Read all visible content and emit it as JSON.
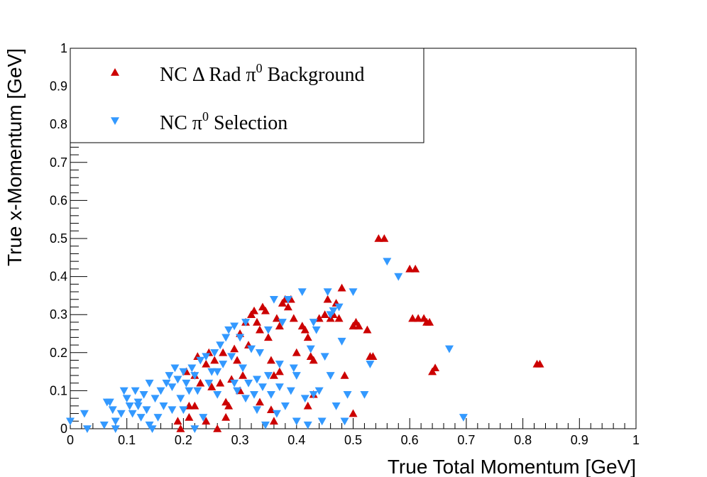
{
  "chart_data": {
    "type": "scatter",
    "xlabel": "True Total Momentum [GeV]",
    "ylabel": "True x-Momentum [GeV]",
    "xlim": [
      0,
      1
    ],
    "ylim": [
      0,
      1
    ],
    "x_ticks": [
      "0",
      "0.1",
      "0.2",
      "0.3",
      "0.4",
      "0.5",
      "0.6",
      "0.7",
      "0.8",
      "0.9",
      "1"
    ],
    "y_ticks": [
      "0",
      "0.1",
      "0.2",
      "0.3",
      "0.4",
      "0.5",
      "0.6",
      "0.7",
      "0.8",
      "0.9",
      "1"
    ],
    "grid": false,
    "legend_position": "top-left",
    "legend": [
      {
        "name": "NC Δ Rad π⁰ Background",
        "prefix": "NC Δ Rad π",
        "sup": "0",
        "suffix": " Background",
        "marker": "triangle-up",
        "color": "#cc0000"
      },
      {
        "name": "NC π⁰ Selection",
        "prefix": "NC π",
        "sup": "0",
        "suffix": " Selection",
        "marker": "triangle-down",
        "color": "#3399ff"
      }
    ],
    "series": [
      {
        "name": "NC Δ Rad π⁰ Background",
        "marker": "triangle-up",
        "color": "#cc0000",
        "points": [
          [
            0.19,
            0.02
          ],
          [
            0.195,
            0.0
          ],
          [
            0.21,
            0.06
          ],
          [
            0.21,
            0.03
          ],
          [
            0.205,
            0.15
          ],
          [
            0.22,
            0.14
          ],
          [
            0.225,
            0.19
          ],
          [
            0.23,
            0.12
          ],
          [
            0.24,
            0.17
          ],
          [
            0.245,
            0.2
          ],
          [
            0.25,
            0.11
          ],
          [
            0.255,
            0.18
          ],
          [
            0.26,
            0.0
          ],
          [
            0.265,
            0.12
          ],
          [
            0.27,
            0.2
          ],
          [
            0.275,
            0.07
          ],
          [
            0.28,
            0.06
          ],
          [
            0.285,
            0.13
          ],
          [
            0.29,
            0.21
          ],
          [
            0.295,
            0.18
          ],
          [
            0.3,
            0.25
          ],
          [
            0.305,
            0.14
          ],
          [
            0.31,
            0.28
          ],
          [
            0.315,
            0.22
          ],
          [
            0.32,
            0.3
          ],
          [
            0.325,
            0.31
          ],
          [
            0.33,
            0.28
          ],
          [
            0.335,
            0.26
          ],
          [
            0.34,
            0.32
          ],
          [
            0.345,
            0.31
          ],
          [
            0.35,
            0.24
          ],
          [
            0.355,
            0.18
          ],
          [
            0.36,
            0.14
          ],
          [
            0.365,
            0.29
          ],
          [
            0.37,
            0.27
          ],
          [
            0.375,
            0.33
          ],
          [
            0.38,
            0.34
          ],
          [
            0.385,
            0.32
          ],
          [
            0.39,
            0.34
          ],
          [
            0.395,
            0.29
          ],
          [
            0.4,
            0.2
          ],
          [
            0.41,
            0.27
          ],
          [
            0.415,
            0.26
          ],
          [
            0.42,
            0.24
          ],
          [
            0.425,
            0.19
          ],
          [
            0.43,
            0.18
          ],
          [
            0.44,
            0.29
          ],
          [
            0.45,
            0.3
          ],
          [
            0.455,
            0.34
          ],
          [
            0.46,
            0.29
          ],
          [
            0.465,
            0.3
          ],
          [
            0.47,
            0.33
          ],
          [
            0.475,
            0.29
          ],
          [
            0.48,
            0.37
          ],
          [
            0.485,
            0.14
          ],
          [
            0.5,
            0.27
          ],
          [
            0.505,
            0.28
          ],
          [
            0.51,
            0.27
          ],
          [
            0.525,
            0.26
          ],
          [
            0.53,
            0.19
          ],
          [
            0.535,
            0.19
          ],
          [
            0.545,
            0.5
          ],
          [
            0.555,
            0.5
          ],
          [
            0.5,
            0.04
          ],
          [
            0.6,
            0.42
          ],
          [
            0.605,
            0.29
          ],
          [
            0.61,
            0.42
          ],
          [
            0.615,
            0.29
          ],
          [
            0.625,
            0.29
          ],
          [
            0.63,
            0.28
          ],
          [
            0.635,
            0.28
          ],
          [
            0.64,
            0.15
          ],
          [
            0.645,
            0.16
          ],
          [
            0.825,
            0.17
          ],
          [
            0.83,
            0.17
          ],
          [
            0.22,
            0.06
          ],
          [
            0.24,
            0.02
          ],
          [
            0.275,
            0.03
          ],
          [
            0.3,
            0.1
          ],
          [
            0.335,
            0.07
          ],
          [
            0.355,
            0.05
          ],
          [
            0.36,
            0.02
          ],
          [
            0.37,
            0.15
          ],
          [
            0.42,
            0.06
          ],
          [
            0.43,
            0.09
          ]
        ]
      },
      {
        "name": "NC π⁰ Selection",
        "marker": "triangle-down",
        "color": "#3399ff",
        "points": [
          [
            0.0,
            0.02
          ],
          [
            0.025,
            0.04
          ],
          [
            0.03,
            0.0
          ],
          [
            0.06,
            0.01
          ],
          [
            0.065,
            0.07
          ],
          [
            0.07,
            0.07
          ],
          [
            0.075,
            0.05
          ],
          [
            0.08,
            0.02
          ],
          [
            0.09,
            0.04
          ],
          [
            0.095,
            0.1
          ],
          [
            0.1,
            0.08
          ],
          [
            0.105,
            0.06
          ],
          [
            0.11,
            0.04
          ],
          [
            0.115,
            0.1
          ],
          [
            0.12,
            0.07
          ],
          [
            0.125,
            0.03
          ],
          [
            0.13,
            0.09
          ],
          [
            0.135,
            0.05
          ],
          [
            0.14,
            0.12
          ],
          [
            0.145,
            0.0
          ],
          [
            0.15,
            0.08
          ],
          [
            0.155,
            0.03
          ],
          [
            0.16,
            0.1
          ],
          [
            0.165,
            0.06
          ],
          [
            0.17,
            0.12
          ],
          [
            0.175,
            0.14
          ],
          [
            0.18,
            0.11
          ],
          [
            0.185,
            0.16
          ],
          [
            0.19,
            0.13
          ],
          [
            0.195,
            0.08
          ],
          [
            0.2,
            0.15
          ],
          [
            0.205,
            0.12
          ],
          [
            0.21,
            0.1
          ],
          [
            0.215,
            0.16
          ],
          [
            0.22,
            0.14
          ],
          [
            0.225,
            0.1
          ],
          [
            0.23,
            0.18
          ],
          [
            0.235,
            0.03
          ],
          [
            0.24,
            0.19
          ],
          [
            0.245,
            0.12
          ],
          [
            0.25,
            0.15
          ],
          [
            0.255,
            0.2
          ],
          [
            0.26,
            0.09
          ],
          [
            0.265,
            0.22
          ],
          [
            0.27,
            0.17
          ],
          [
            0.275,
            0.24
          ],
          [
            0.28,
            0.26
          ],
          [
            0.285,
            0.19
          ],
          [
            0.29,
            0.27
          ],
          [
            0.295,
            0.1
          ],
          [
            0.3,
            0.24
          ],
          [
            0.305,
            0.16
          ],
          [
            0.31,
            0.28
          ],
          [
            0.315,
            0.12
          ],
          [
            0.32,
            0.21
          ],
          [
            0.325,
            0.09
          ],
          [
            0.33,
            0.05
          ],
          [
            0.335,
            0.2
          ],
          [
            0.34,
            0.11
          ],
          [
            0.345,
            0.01
          ],
          [
            0.35,
            0.14
          ],
          [
            0.355,
            0.09
          ],
          [
            0.36,
            0.34
          ],
          [
            0.365,
            0.04
          ],
          [
            0.37,
            0.11
          ],
          [
            0.375,
            0.28
          ],
          [
            0.38,
            0.06
          ],
          [
            0.385,
            0.34
          ],
          [
            0.39,
            0.1
          ],
          [
            0.395,
            0.16
          ],
          [
            0.4,
            0.02
          ],
          [
            0.41,
            0.36
          ],
          [
            0.415,
            0.08
          ],
          [
            0.42,
            0.01
          ],
          [
            0.425,
            0.21
          ],
          [
            0.43,
            0.09
          ],
          [
            0.435,
            0.26
          ],
          [
            0.44,
            0.1
          ],
          [
            0.445,
            0.02
          ],
          [
            0.45,
            0.19
          ],
          [
            0.455,
            0.36
          ],
          [
            0.46,
            0.3
          ],
          [
            0.465,
            0.31
          ],
          [
            0.47,
            0.06
          ],
          [
            0.475,
            0.32
          ],
          [
            0.48,
            0.23
          ],
          [
            0.485,
            0.02
          ],
          [
            0.49,
            0.09
          ],
          [
            0.5,
            0.36
          ],
          [
            0.52,
            0.09
          ],
          [
            0.53,
            0.17
          ],
          [
            0.56,
            0.44
          ],
          [
            0.58,
            0.4
          ],
          [
            0.67,
            0.21
          ],
          [
            0.695,
            0.03
          ],
          [
            0.08,
            0.0
          ],
          [
            0.12,
            0.06
          ],
          [
            0.14,
            0.01
          ],
          [
            0.18,
            0.05
          ],
          [
            0.2,
            0.05
          ],
          [
            0.22,
            0.0
          ],
          [
            0.26,
            0.15
          ],
          [
            0.29,
            0.12
          ],
          [
            0.31,
            0.08
          ],
          [
            0.33,
            0.13
          ],
          [
            0.35,
            0.26
          ],
          [
            0.37,
            0.17
          ],
          [
            0.4,
            0.14
          ],
          [
            0.43,
            0.28
          ],
          [
            0.46,
            0.14
          ]
        ]
      }
    ]
  }
}
